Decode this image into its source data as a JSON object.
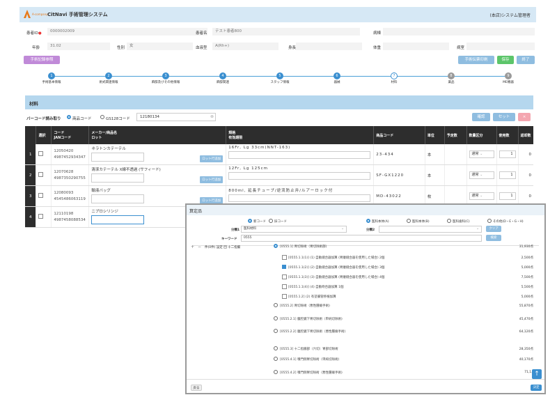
{
  "header": {
    "logo_text": "A-company",
    "app_title": "CitNavi 手術管理システム",
    "user": "(本店)システム管理者"
  },
  "patient": {
    "id_label": "患者ID",
    "id_value": "0000002009",
    "name_label": "患者名",
    "name_value": "テスト患者800",
    "ward_label": "病棟",
    "age_label": "年齢",
    "age_value": "31.02",
    "sex_label": "性別",
    "sex_value": "女",
    "blood_label": "血液型",
    "blood_value": "A(Rh+)",
    "height_label": "身長",
    "weight_label": "体重",
    "dept_label": "病室",
    "history_button": "手術記録参照",
    "print_button": "手術伝票印刷",
    "save_button": "保存",
    "close_button": "終了"
  },
  "steps": [
    {
      "num": "1",
      "label": "手術基本情報",
      "state": "done"
    },
    {
      "num": "2",
      "label": "術式関連情報",
      "state": "done"
    },
    {
      "num": "3",
      "label": "麻酔及びその他情報",
      "state": "done"
    },
    {
      "num": "4",
      "label": "麻酔関連",
      "state": "done"
    },
    {
      "num": "5",
      "label": "スタッフ情報",
      "state": "done"
    },
    {
      "num": "6",
      "label": "器械",
      "state": "done"
    },
    {
      "num": "7",
      "label": "材料",
      "state": "current"
    },
    {
      "num": "8",
      "label": "薬品",
      "state": "off"
    },
    {
      "num": "9",
      "label": "ME機器",
      "state": "off"
    }
  ],
  "material": {
    "title": "材料",
    "barcode_label": "バーコード読み取り",
    "opt_product": "商品コード",
    "opt_gs1": "GS128コード",
    "barcode_value": "12180134",
    "confirm_button": "確認",
    "set_button": "セット",
    "delete_button": "×",
    "columns": [
      "選択",
      "コード\nJANコード",
      "メーカー/商品名\nロット",
      "規格\n有効期限",
      "商品コード",
      "単位",
      "予定数",
      "数量区分",
      "使用数",
      "返却数"
    ],
    "lot_button": "ロット行追加",
    "rows": [
      {
        "no": "1",
        "code": "12050420",
        "jan": "4987452934347",
        "name": "ネラトンカテーテル",
        "spec": "16Fr, Lg 33cm(NNT-163)",
        "pcode": "23-434",
        "unit": "本",
        "kubun": "通常",
        "use": "1",
        "ret": "0"
      },
      {
        "no": "2",
        "code": "12070628",
        "jan": "4987350290755",
        "name": "清潔カテーテル X線不透過 (サフィード)",
        "spec": "12Fr, Lg 125cm",
        "pcode": "SF-GX1220",
        "unit": "本",
        "kubun": "通常",
        "use": "1",
        "ret": "0"
      },
      {
        "no": "3",
        "code": "12080093",
        "jan": "4545486063119",
        "name": "輸液バッグ",
        "spec": "800ml, 延長チューブ/逆流防止弁/ルアーロック付",
        "pcode": "MD-43022",
        "unit": "枚",
        "kubun": "通常",
        "use": "1",
        "ret": "0"
      },
      {
        "no": "4",
        "code": "12110198",
        "jan": "4987458088534",
        "name": "ニプロシリンジ",
        "spec": "",
        "pcode": "",
        "unit": "",
        "kubun": "",
        "use": "",
        "ret": ""
      }
    ]
  },
  "modal": {
    "title": "算定品",
    "radio_a": "新コード",
    "radio_b": "旧コード",
    "filter_opts": [
      "医科本体(A)",
      "医科本体(B)",
      "医科歯科(C)",
      "その他(D・E・G・H)"
    ],
    "cat1_label": "分類1",
    "cat1_value": "医科材料",
    "cat2_label": "分類2",
    "clear_button": "クリア",
    "keyword_label": "キーワード",
    "keyword_value": "0555",
    "search_button": "検索",
    "tree_header": "件(0件) 設定    回  十二指腸",
    "items": [
      {
        "label": "[0555.1] 胃切除術（胃切除術部)",
        "points": "31,930点",
        "level": 0,
        "radio": true,
        "on": true
      },
      {
        "label": "[0555.1.1(1)] (1) 自動縫合器加算 (胃瘻縫合器を使用した場合) 2個",
        "points": "2,500点",
        "level": 1,
        "check": false
      },
      {
        "label": "[0555.1.1(2)] (2) 自動縫合器加算 (胃瘻縫合器を使用した場合) 3個",
        "points": "5,000点",
        "level": 1,
        "check": true
      },
      {
        "label": "[0555.1.1(3)] (3) 自動縫合器加算 (胃瘻縫合器を使用した場合) 4個",
        "points": "7,500点",
        "level": 1,
        "check": false
      },
      {
        "label": "[0555.1.1(4)] (4) 自動吻合器加算 1個",
        "points": "5,500点",
        "level": 1,
        "check": false
      },
      {
        "label": "[0555.1.2] (2) 有茎腸管移植加算",
        "points": "5,000点",
        "level": 1,
        "check": false
      },
      {
        "label": "[0555.2] 胃切除術（悪性腫瘍手術)",
        "points": "55,870点",
        "level": 0,
        "radio": true
      },
      {
        "label": "[0555.2.1] 腹腔鏡下胃切除術（単純切除術)",
        "points": "45,470点",
        "level": 0,
        "radio": true
      },
      {
        "label": "[0555.2.2] 腹腔鏡下胃切除術（悪性腫瘍手術)",
        "points": "64,120点",
        "level": 0,
        "radio": true
      },
      {
        "label": "[0555.3] 十二指腸部（穴切）胃部切除術",
        "points": "28,350点",
        "level": 0,
        "radio": true
      },
      {
        "label": "[0555.4.1] 噴門側胃切除術（単純切除術)",
        "points": "40,170点",
        "level": 0,
        "radio": true
      },
      {
        "label": "[0555.4.2] 噴門側胃切除術（悪性腫瘍手術)",
        "points": "71,1..",
        "level": 0,
        "radio": true
      }
    ],
    "back_button": "戻る",
    "select_button": "決定"
  }
}
